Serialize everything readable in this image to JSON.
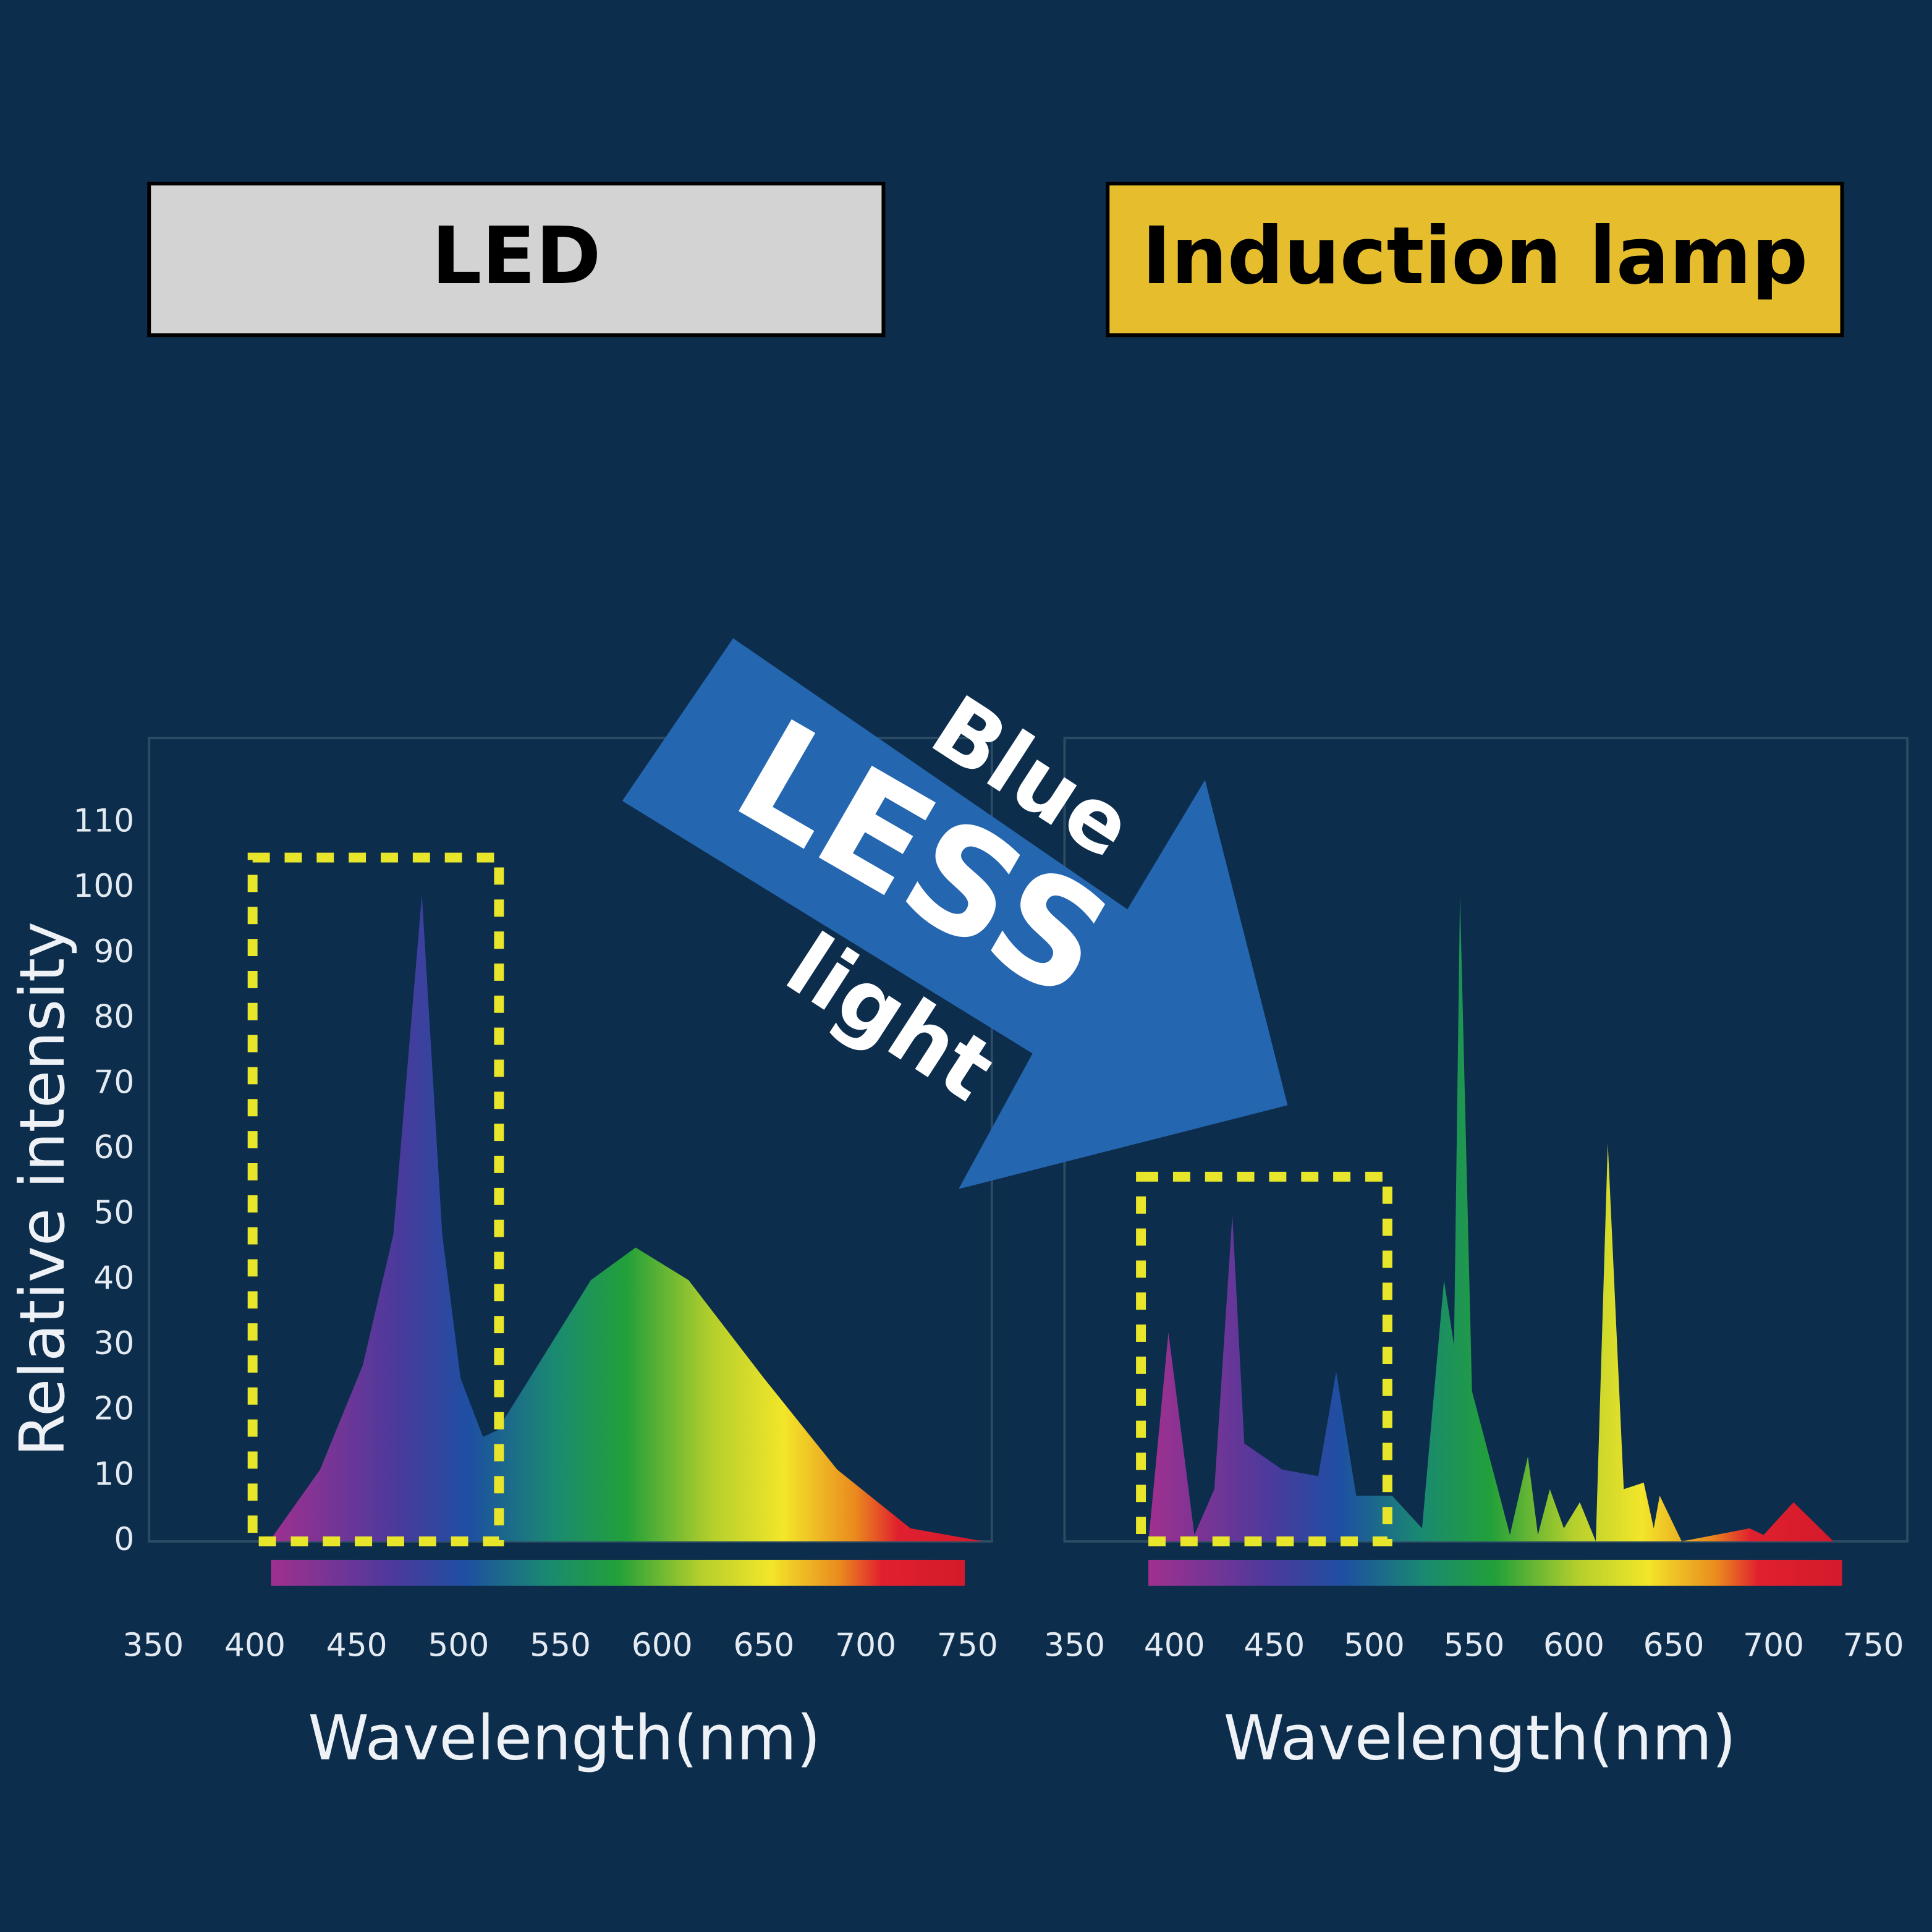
{
  "chart_data": [
    {
      "type": "area",
      "title": "LED",
      "annotations": [
        "Blue",
        "LESS",
        "light"
      ],
      "x_label": "Wavelength(nm)",
      "y_label": "Relative intensity",
      "x": [
        407,
        432,
        453,
        468,
        482,
        492,
        501,
        512,
        519,
        541,
        565,
        587,
        613,
        650,
        686,
        722,
        758
      ],
      "values": [
        0,
        11,
        27,
        47,
        99,
        47,
        25,
        16,
        17,
        28,
        40,
        45,
        40,
        25,
        11,
        2,
        0
      ],
      "xlim": [
        348,
        762
      ],
      "ylim": [
        0,
        123
      ],
      "xticks": [
        350,
        400,
        450,
        500,
        550,
        600,
        650,
        700,
        750
      ],
      "yticks": [
        0,
        10,
        20,
        30,
        40,
        50,
        60,
        70,
        80,
        90,
        100,
        110
      ]
    },
    {
      "type": "area",
      "title": "Induction lamp",
      "x_label": "Wavelength(nm)",
      "x": [
        387,
        397,
        410,
        420,
        429,
        435,
        454,
        472,
        481,
        491,
        509,
        524,
        535,
        540,
        543,
        549,
        568,
        577,
        582,
        588,
        595,
        603,
        611,
        617,
        625,
        635,
        640,
        643,
        654,
        688,
        695,
        710,
        730
      ],
      "values": [
        0,
        32,
        1,
        8,
        50,
        15,
        11,
        10,
        26,
        7,
        7,
        2,
        40,
        30,
        99,
        23,
        1,
        13,
        1,
        8,
        2,
        6,
        0,
        61,
        8,
        9,
        2,
        7,
        0,
        2,
        1,
        6,
        0
      ],
      "xlim": [
        345,
        767
      ],
      "ylim": [
        0,
        123
      ],
      "xticks": [
        350,
        400,
        450,
        500,
        550,
        600,
        650,
        700,
        750
      ]
    }
  ]
}
